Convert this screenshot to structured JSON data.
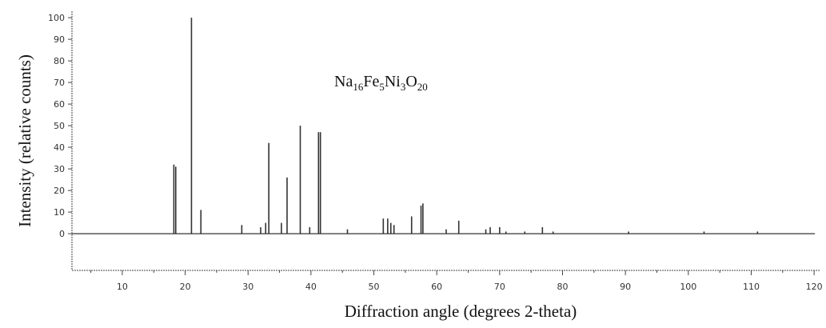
{
  "chart_data": {
    "type": "bar",
    "xlabel": "Diffraction angle (degrees 2-theta)",
    "ylabel": "Intensity (relative counts)",
    "annotation": {
      "parts": [
        "Na",
        "16",
        "Fe",
        "5",
        "Ni",
        "3",
        "O",
        "20"
      ]
    },
    "xlim": [
      2,
      121
    ],
    "ylim": [
      -17,
      103
    ],
    "xticks": [
      10,
      20,
      30,
      40,
      50,
      60,
      70,
      80,
      90,
      100,
      110,
      120
    ],
    "xticks_minor": [
      5,
      15,
      25,
      35,
      45,
      55,
      65,
      75,
      85,
      95,
      105,
      115
    ],
    "xtick_labels": [
      "10",
      "20",
      "30",
      "40",
      "50",
      "60",
      "70",
      "80",
      "90",
      "100",
      "110",
      "120"
    ],
    "yticks": [
      0,
      10,
      20,
      30,
      40,
      50,
      60,
      70,
      80,
      90,
      100
    ],
    "ytick_labels": [
      "0",
      "10",
      "20",
      "30",
      "40",
      "50",
      "60",
      "70",
      "80",
      "90",
      "100"
    ],
    "grid": false,
    "baseline_y": 0,
    "line_color": "#333333",
    "peaks": [
      {
        "x": 18.2,
        "y": 32
      },
      {
        "x": 18.5,
        "y": 31
      },
      {
        "x": 21.0,
        "y": 100
      },
      {
        "x": 22.5,
        "y": 11
      },
      {
        "x": 29.0,
        "y": 4
      },
      {
        "x": 32.0,
        "y": 3
      },
      {
        "x": 32.8,
        "y": 5
      },
      {
        "x": 33.3,
        "y": 42
      },
      {
        "x": 35.3,
        "y": 5
      },
      {
        "x": 36.2,
        "y": 26
      },
      {
        "x": 38.3,
        "y": 50
      },
      {
        "x": 39.8,
        "y": 3
      },
      {
        "x": 41.2,
        "y": 47
      },
      {
        "x": 41.5,
        "y": 47
      },
      {
        "x": 45.8,
        "y": 2
      },
      {
        "x": 51.5,
        "y": 7
      },
      {
        "x": 52.2,
        "y": 7
      },
      {
        "x": 52.7,
        "y": 5
      },
      {
        "x": 53.2,
        "y": 4
      },
      {
        "x": 56.0,
        "y": 8
      },
      {
        "x": 57.5,
        "y": 13
      },
      {
        "x": 57.8,
        "y": 14
      },
      {
        "x": 61.5,
        "y": 2
      },
      {
        "x": 63.5,
        "y": 6
      },
      {
        "x": 67.8,
        "y": 2
      },
      {
        "x": 68.5,
        "y": 3
      },
      {
        "x": 70.0,
        "y": 3
      },
      {
        "x": 71.0,
        "y": 1
      },
      {
        "x": 74.0,
        "y": 1
      },
      {
        "x": 76.8,
        "y": 3
      },
      {
        "x": 78.5,
        "y": 1
      },
      {
        "x": 90.5,
        "y": 1
      },
      {
        "x": 102.5,
        "y": 1
      },
      {
        "x": 111.0,
        "y": 1
      }
    ]
  }
}
